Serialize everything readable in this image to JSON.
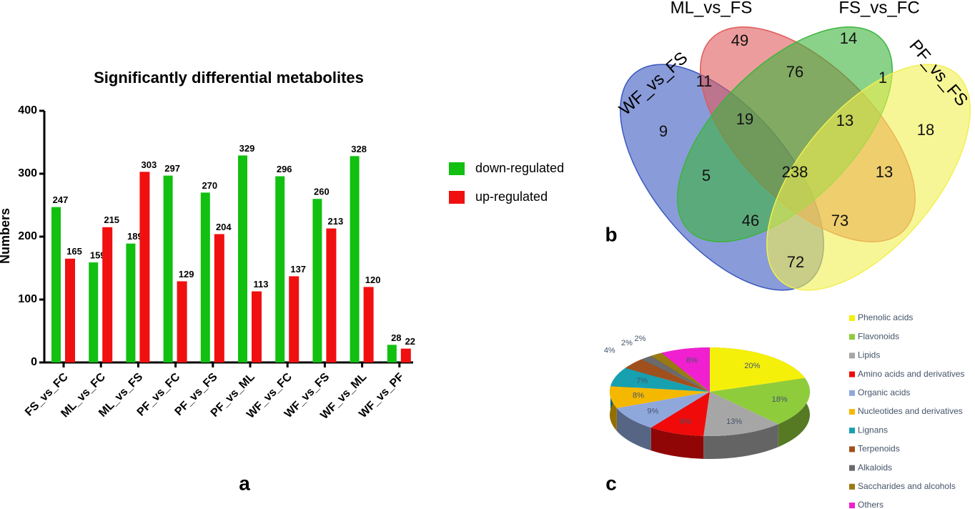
{
  "chart_data": [
    {
      "type": "bar",
      "panel_label": "a",
      "title": "Significantly differential metabolites",
      "ylabel": "Numbers",
      "categories": [
        "FS_vs_FC",
        "ML_vs_FC",
        "ML_vs_FS",
        "PF_vs_FC",
        "PF_vs_FS",
        "PF_vs_ML",
        "WF_vs_FC",
        "WF_vs_FS",
        "WF_vs_ML",
        "WF_vs_PF"
      ],
      "series": [
        {
          "name": "down-regulated",
          "color": "#11c011",
          "values": [
            247,
            159,
            189,
            297,
            270,
            329,
            296,
            260,
            328,
            28
          ]
        },
        {
          "name": "up-regulated",
          "color": "#f01010",
          "values": [
            165,
            215,
            303,
            129,
            204,
            113,
            137,
            213,
            120,
            22
          ]
        }
      ],
      "ylim": [
        0,
        400
      ],
      "yticks": [
        0,
        100,
        200,
        300,
        400
      ]
    },
    {
      "type": "venn",
      "panel_label": "b",
      "sets": [
        {
          "name": "WF_vs_FS",
          "color": "#3a58c0"
        },
        {
          "name": "ML_vs_FS",
          "color": "#e05a5a"
        },
        {
          "name": "FS_vs_FC",
          "color": "#3cb43c"
        },
        {
          "name": "PF_vs_FS",
          "color": "#f2f050"
        }
      ],
      "values": [
        49,
        14,
        1,
        18,
        11,
        76,
        19,
        13,
        238,
        9,
        5,
        46,
        73,
        13,
        72
      ]
    },
    {
      "type": "pie",
      "panel_label": "c",
      "categories": [
        "Phenolic acids",
        "Flavonoids",
        "Lipids",
        "Amino acids and derivatives",
        "Organic acids",
        "Nucleotides and derivatives",
        "Lignans",
        "Terpenoids",
        "Alkaloids",
        "Saccharides and alcohols",
        "Others"
      ],
      "values": [
        20,
        18,
        13,
        9,
        9,
        8,
        7,
        4,
        2,
        2,
        8
      ],
      "value_labels": [
        "20%",
        "18%",
        "13%",
        "9%",
        "9%",
        "8%",
        "7%",
        "4%",
        "2%",
        "2%",
        "8%"
      ],
      "colors": [
        "#f5f00a",
        "#8fcc3c",
        "#a6a6a6",
        "#f00a0a",
        "#8fa8dc",
        "#f5b800",
        "#17a0b0",
        "#a0501c",
        "#6a6a6a",
        "#9a7a10",
        "#f020d0"
      ]
    }
  ]
}
